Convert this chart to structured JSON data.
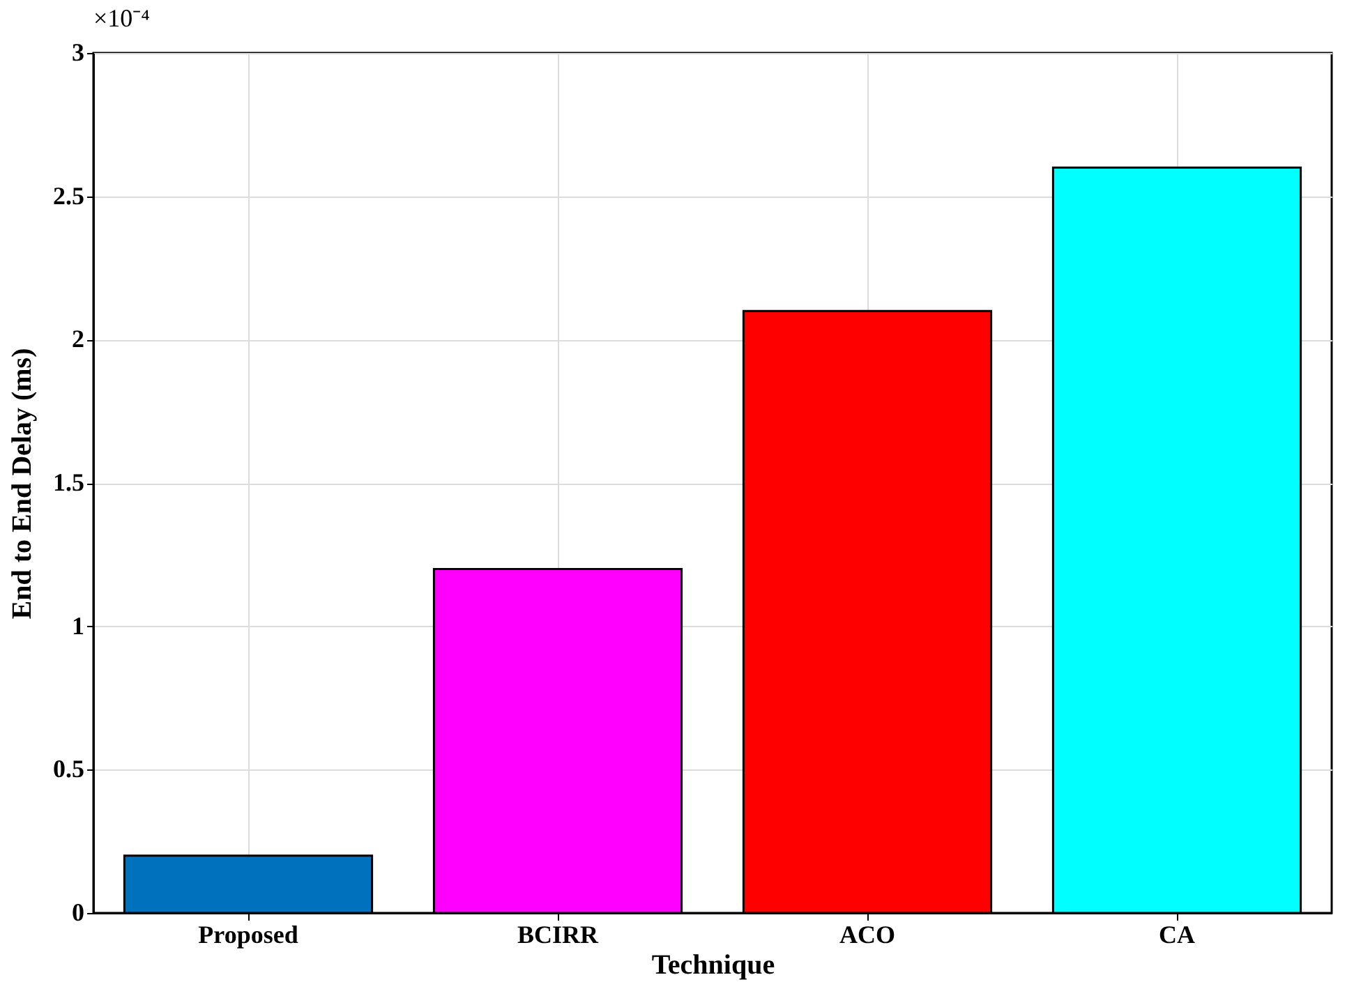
{
  "chart_data": {
    "type": "bar",
    "categories": [
      "Proposed",
      "BCIRR",
      "ACO",
      "CA"
    ],
    "values": [
      0.2,
      1.2,
      2.1,
      2.6
    ],
    "colors": [
      "#0072bd",
      "#ff00ff",
      "#ff0000",
      "#00ffff"
    ],
    "xlabel": "Technique",
    "ylabel": "End to End Delay (ms)",
    "annotations": [
      "×10⁻⁴"
    ],
    "ylim": [
      0,
      3
    ],
    "yticks": [
      0,
      0.5,
      1,
      1.5,
      2,
      2.5,
      3
    ],
    "grid": true
  }
}
